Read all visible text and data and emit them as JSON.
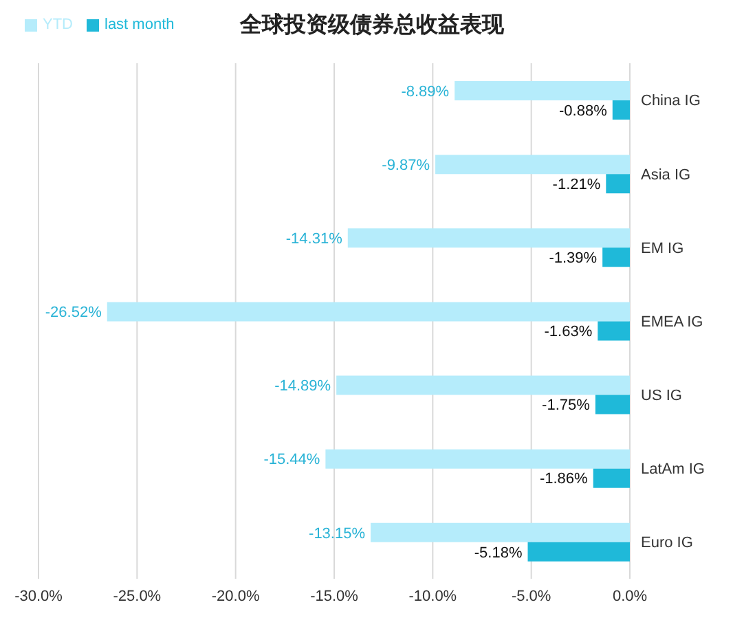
{
  "chart_data": {
    "type": "bar",
    "orientation": "horizontal",
    "title": "全球投资级债券总收益表现",
    "categories": [
      "China IG",
      "Asia IG",
      "EM IG",
      "EMEA IG",
      "US IG",
      "LatAm IG",
      "Euro IG"
    ],
    "series": [
      {
        "name": "YTD",
        "color": "#b5ecfb",
        "values": [
          -8.89,
          -9.87,
          -14.31,
          -26.52,
          -14.89,
          -15.44,
          -13.15
        ],
        "value_labels": [
          "-8.89%",
          "-9.87%",
          "-14.31%",
          "-26.52%",
          "-14.89%",
          "-15.44%",
          "-13.15%"
        ]
      },
      {
        "name": "last month",
        "color": "#1fb9d9",
        "values": [
          -0.88,
          -1.21,
          -1.39,
          -1.63,
          -1.75,
          -1.86,
          -5.18
        ],
        "value_labels": [
          "-0.88%",
          "-1.21%",
          "-1.39%",
          "-1.63%",
          "-1.75%",
          "-1.86%",
          "-5.18%"
        ]
      }
    ],
    "xlim": [
      -30,
      0
    ],
    "xticks": [
      {
        "value": -30,
        "label": "-30.0%"
      },
      {
        "value": -25,
        "label": "-25.0%"
      },
      {
        "value": -20,
        "label": "-20.0%"
      },
      {
        "value": -15,
        "label": "-15.0%"
      },
      {
        "value": -10,
        "label": "-10.0%"
      },
      {
        "value": -5,
        "label": "-5.0%"
      },
      {
        "value": 0,
        "label": "0.0%"
      }
    ],
    "grid": "x",
    "legend": "top left"
  }
}
